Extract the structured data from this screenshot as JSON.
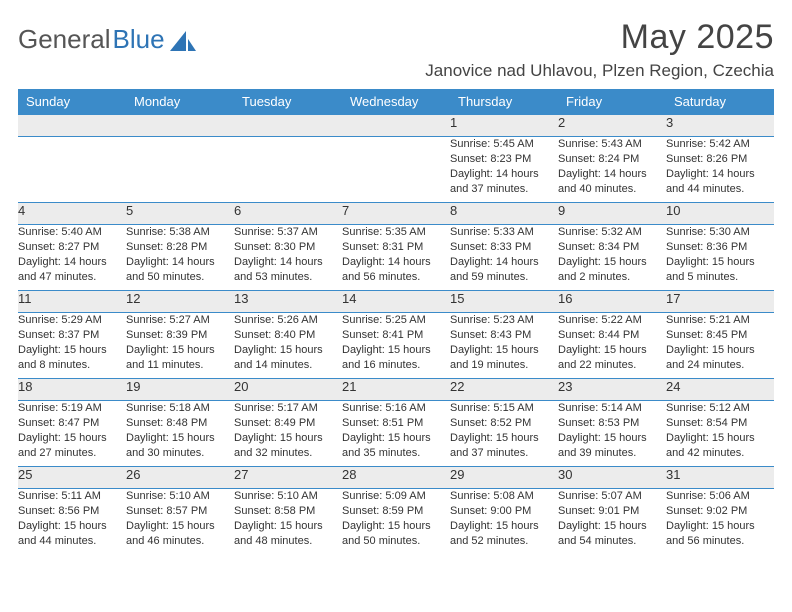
{
  "brand": {
    "part1": "General",
    "part2": "Blue"
  },
  "title": "May 2025",
  "location": "Janovice nad Uhlavou, Plzen Region, Czechia",
  "colors": {
    "header_bg": "#3b8bc9",
    "header_fg": "#ffffff",
    "daynum_bg": "#ececec",
    "rule": "#3b8bc9",
    "text": "#333333",
    "brand_gray": "#555555",
    "brand_blue": "#2e74b5",
    "page_bg": "#ffffff"
  },
  "typography": {
    "title_fontsize_pt": 26,
    "location_fontsize_pt": 13,
    "weekday_fontsize_pt": 10,
    "daynum_fontsize_pt": 10,
    "detail_fontsize_pt": 8
  },
  "weekdays": [
    "Sunday",
    "Monday",
    "Tuesday",
    "Wednesday",
    "Thursday",
    "Friday",
    "Saturday"
  ],
  "weeks": [
    [
      null,
      null,
      null,
      null,
      {
        "n": "1",
        "sunrise": "5:45 AM",
        "sunset": "8:23 PM",
        "daylight": "14 hours and 37 minutes."
      },
      {
        "n": "2",
        "sunrise": "5:43 AM",
        "sunset": "8:24 PM",
        "daylight": "14 hours and 40 minutes."
      },
      {
        "n": "3",
        "sunrise": "5:42 AM",
        "sunset": "8:26 PM",
        "daylight": "14 hours and 44 minutes."
      }
    ],
    [
      {
        "n": "4",
        "sunrise": "5:40 AM",
        "sunset": "8:27 PM",
        "daylight": "14 hours and 47 minutes."
      },
      {
        "n": "5",
        "sunrise": "5:38 AM",
        "sunset": "8:28 PM",
        "daylight": "14 hours and 50 minutes."
      },
      {
        "n": "6",
        "sunrise": "5:37 AM",
        "sunset": "8:30 PM",
        "daylight": "14 hours and 53 minutes."
      },
      {
        "n": "7",
        "sunrise": "5:35 AM",
        "sunset": "8:31 PM",
        "daylight": "14 hours and 56 minutes."
      },
      {
        "n": "8",
        "sunrise": "5:33 AM",
        "sunset": "8:33 PM",
        "daylight": "14 hours and 59 minutes."
      },
      {
        "n": "9",
        "sunrise": "5:32 AM",
        "sunset": "8:34 PM",
        "daylight": "15 hours and 2 minutes."
      },
      {
        "n": "10",
        "sunrise": "5:30 AM",
        "sunset": "8:36 PM",
        "daylight": "15 hours and 5 minutes."
      }
    ],
    [
      {
        "n": "11",
        "sunrise": "5:29 AM",
        "sunset": "8:37 PM",
        "daylight": "15 hours and 8 minutes."
      },
      {
        "n": "12",
        "sunrise": "5:27 AM",
        "sunset": "8:39 PM",
        "daylight": "15 hours and 11 minutes."
      },
      {
        "n": "13",
        "sunrise": "5:26 AM",
        "sunset": "8:40 PM",
        "daylight": "15 hours and 14 minutes."
      },
      {
        "n": "14",
        "sunrise": "5:25 AM",
        "sunset": "8:41 PM",
        "daylight": "15 hours and 16 minutes."
      },
      {
        "n": "15",
        "sunrise": "5:23 AM",
        "sunset": "8:43 PM",
        "daylight": "15 hours and 19 minutes."
      },
      {
        "n": "16",
        "sunrise": "5:22 AM",
        "sunset": "8:44 PM",
        "daylight": "15 hours and 22 minutes."
      },
      {
        "n": "17",
        "sunrise": "5:21 AM",
        "sunset": "8:45 PM",
        "daylight": "15 hours and 24 minutes."
      }
    ],
    [
      {
        "n": "18",
        "sunrise": "5:19 AM",
        "sunset": "8:47 PM",
        "daylight": "15 hours and 27 minutes."
      },
      {
        "n": "19",
        "sunrise": "5:18 AM",
        "sunset": "8:48 PM",
        "daylight": "15 hours and 30 minutes."
      },
      {
        "n": "20",
        "sunrise": "5:17 AM",
        "sunset": "8:49 PM",
        "daylight": "15 hours and 32 minutes."
      },
      {
        "n": "21",
        "sunrise": "5:16 AM",
        "sunset": "8:51 PM",
        "daylight": "15 hours and 35 minutes."
      },
      {
        "n": "22",
        "sunrise": "5:15 AM",
        "sunset": "8:52 PM",
        "daylight": "15 hours and 37 minutes."
      },
      {
        "n": "23",
        "sunrise": "5:14 AM",
        "sunset": "8:53 PM",
        "daylight": "15 hours and 39 minutes."
      },
      {
        "n": "24",
        "sunrise": "5:12 AM",
        "sunset": "8:54 PM",
        "daylight": "15 hours and 42 minutes."
      }
    ],
    [
      {
        "n": "25",
        "sunrise": "5:11 AM",
        "sunset": "8:56 PM",
        "daylight": "15 hours and 44 minutes."
      },
      {
        "n": "26",
        "sunrise": "5:10 AM",
        "sunset": "8:57 PM",
        "daylight": "15 hours and 46 minutes."
      },
      {
        "n": "27",
        "sunrise": "5:10 AM",
        "sunset": "8:58 PM",
        "daylight": "15 hours and 48 minutes."
      },
      {
        "n": "28",
        "sunrise": "5:09 AM",
        "sunset": "8:59 PM",
        "daylight": "15 hours and 50 minutes."
      },
      {
        "n": "29",
        "sunrise": "5:08 AM",
        "sunset": "9:00 PM",
        "daylight": "15 hours and 52 minutes."
      },
      {
        "n": "30",
        "sunrise": "5:07 AM",
        "sunset": "9:01 PM",
        "daylight": "15 hours and 54 minutes."
      },
      {
        "n": "31",
        "sunrise": "5:06 AM",
        "sunset": "9:02 PM",
        "daylight": "15 hours and 56 minutes."
      }
    ]
  ],
  "labels": {
    "sunrise_prefix": "Sunrise: ",
    "sunset_prefix": "Sunset: ",
    "daylight_prefix": "Daylight: "
  }
}
